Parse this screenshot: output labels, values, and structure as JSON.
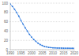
{
  "chart_data": {
    "type": "line",
    "x": [
      1990,
      1991,
      1992,
      1993,
      1994,
      1995,
      1996,
      1997,
      1998,
      1999,
      2000,
      2001,
      2002,
      2003,
      2004,
      2005,
      2006,
      2007,
      2008,
      2009,
      2010,
      2011,
      2012,
      2013,
      2014,
      2015,
      2016,
      2017,
      2018,
      2019,
      2020
    ],
    "values": [
      98,
      93,
      87,
      80,
      72,
      63,
      55,
      47,
      40,
      33,
      27,
      22,
      18,
      14,
      11,
      9,
      7,
      6,
      5,
      4.5,
      4,
      3.8,
      3.6,
      3.5,
      3.4,
      3.3,
      3.2,
      3.2,
      3.1,
      3.1,
      3.0
    ],
    "color": "#2876dd",
    "marker": "circle",
    "xlim": [
      1990,
      2020
    ],
    "xticks": [
      1990,
      1995,
      2000,
      2005,
      2010,
      2015,
      2020
    ],
    "ylim": [
      0,
      100
    ],
    "yticks": [
      0,
      20,
      40,
      60,
      80,
      100
    ],
    "grid": true
  }
}
